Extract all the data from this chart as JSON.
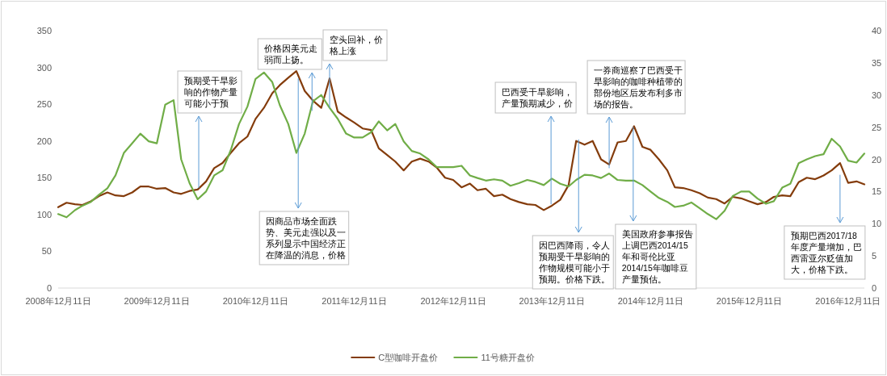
{
  "chart_data": {
    "type": "line",
    "x": [
      "2008-12-11",
      "2009-01-11",
      "2009-02-11",
      "2009-03-11",
      "2009-04-11",
      "2009-05-11",
      "2009-06-11",
      "2009-07-11",
      "2009-08-11",
      "2009-09-11",
      "2009-10-11",
      "2009-11-11",
      "2009-12-11",
      "2010-01-11",
      "2010-02-11",
      "2010-03-11",
      "2010-04-11",
      "2010-05-11",
      "2010-06-11",
      "2010-07-11",
      "2010-08-11",
      "2010-09-11",
      "2010-10-11",
      "2010-11-11",
      "2010-12-11",
      "2011-01-11",
      "2011-02-11",
      "2011-03-11",
      "2011-04-11",
      "2011-05-11",
      "2011-06-11",
      "2011-07-11",
      "2011-08-11",
      "2011-09-11",
      "2011-10-11",
      "2011-11-11",
      "2011-12-11",
      "2012-01-11",
      "2012-02-11",
      "2012-03-11",
      "2012-04-11",
      "2012-05-11",
      "2012-06-11",
      "2012-07-11",
      "2012-08-11",
      "2012-09-11",
      "2012-10-11",
      "2012-11-11",
      "2012-12-11",
      "2013-01-11",
      "2013-02-11",
      "2013-03-11",
      "2013-04-11",
      "2013-05-11",
      "2013-06-11",
      "2013-07-11",
      "2013-08-11",
      "2013-09-11",
      "2013-10-11",
      "2013-11-11",
      "2013-12-11",
      "2014-01-11",
      "2014-02-11",
      "2014-03-11",
      "2014-04-11",
      "2014-05-11",
      "2014-06-11",
      "2014-07-11",
      "2014-08-11",
      "2014-09-11",
      "2014-10-11",
      "2014-11-11",
      "2014-12-11",
      "2015-01-11",
      "2015-02-11",
      "2015-03-11",
      "2015-04-11",
      "2015-05-11",
      "2015-06-11",
      "2015-07-11",
      "2015-08-11",
      "2015-09-11",
      "2015-10-11",
      "2015-11-11",
      "2015-12-11",
      "2016-01-11",
      "2016-02-11",
      "2016-03-11",
      "2016-04-11",
      "2016-05-11",
      "2016-06-11",
      "2016-07-11",
      "2016-08-11",
      "2016-09-11",
      "2016-10-11",
      "2016-11-11",
      "2016-12-11",
      "2017-01-11",
      "2017-02-09"
    ],
    "series": [
      {
        "name": "C型咖啡开盘价",
        "color": "#843c0c",
        "values": [
          110,
          116,
          114,
          113,
          118,
          125,
          130,
          126,
          125,
          130,
          138,
          138,
          135,
          136,
          130,
          128,
          132,
          134,
          145,
          163,
          170,
          184,
          197,
          206,
          230,
          245,
          265,
          276,
          286,
          295,
          268,
          255,
          245,
          285,
          240,
          232,
          225,
          217,
          215,
          190,
          181,
          172,
          160,
          172,
          176,
          172,
          164,
          150,
          147,
          137,
          142,
          133,
          135,
          125,
          127,
          121,
          117,
          114,
          113,
          106,
          112,
          120,
          140,
          200,
          195,
          200,
          175,
          168,
          198,
          200,
          220,
          192,
          188,
          175,
          160,
          137,
          136,
          133,
          129,
          123,
          121,
          115,
          124,
          122,
          118,
          114,
          117,
          124,
          126,
          125,
          144,
          150,
          148,
          153,
          160,
          170,
          143,
          145,
          141
        ]
      },
      {
        "name": "11号糖开盘价",
        "color": "#70ad47",
        "axis": "y2",
        "values": [
          11.5,
          11.0,
          12.1,
          12.8,
          13.4,
          14.5,
          15.5,
          17.5,
          21.0,
          22.5,
          24.0,
          22.8,
          22.5,
          28.5,
          29.2,
          20.0,
          16.3,
          13.8,
          15.0,
          17.5,
          18.3,
          21.5,
          25.5,
          28.2,
          32.5,
          33.5,
          32.0,
          28.4,
          25.5,
          21.0,
          24.0,
          29.0,
          30.0,
          28.0,
          26.3,
          24.0,
          23.4,
          23.4,
          24.2,
          25.9,
          24.5,
          25.5,
          22.8,
          21.3,
          20.9,
          20.0,
          18.8,
          18.8,
          18.8,
          19.0,
          17.5,
          17.1,
          16.7,
          16.9,
          16.7,
          15.9,
          16.3,
          16.8,
          16.5,
          16.0,
          17.0,
          16.2,
          15.8,
          16.8,
          17.6,
          17.5,
          17.1,
          17.8,
          16.8,
          16.7,
          16.7,
          16.0,
          15.0,
          14.0,
          13.4,
          12.6,
          12.8,
          13.3,
          12.4,
          11.5,
          10.7,
          12.0,
          14.3,
          15.0,
          15.0,
          13.9,
          13.1,
          13.5,
          15.6,
          16.2,
          19.4,
          20.0,
          20.5,
          20.8,
          23.2,
          22.0,
          19.8,
          19.5,
          20.9
        ]
      }
    ],
    "xlim": [
      "2008-12-11",
      "2017-02-09"
    ],
    "xticks": [
      {
        "value": "2008-12-11",
        "label": "2008年12月11日"
      },
      {
        "value": "2009-12-11",
        "label": "2009年12月11日"
      },
      {
        "value": "2010-12-11",
        "label": "2010年12月11日"
      },
      {
        "value": "2011-12-11",
        "label": "2011年12月11日"
      },
      {
        "value": "2012-12-11",
        "label": "2012年12月11日"
      },
      {
        "value": "2013-12-11",
        "label": "2013年12月11日"
      },
      {
        "value": "2014-12-11",
        "label": "2014年12月11日"
      },
      {
        "value": "2015-12-11",
        "label": "2015年12月11日"
      },
      {
        "value": "2016-12-11",
        "label": "2016年12月11日"
      }
    ],
    "ylim": [
      0,
      350
    ],
    "yticks": [
      0,
      50,
      100,
      150,
      200,
      250,
      300,
      350
    ],
    "y2lim": [
      0,
      40
    ],
    "y2ticks": [
      0,
      5,
      10,
      15,
      20,
      25,
      30,
      35,
      40
    ],
    "legend": "bottom",
    "annotations": [
      {
        "text": "预期受干旱影响的作物产量可能小于预",
        "x": "2010-05-15",
        "y": 136
      },
      {
        "text": "价格因美元走弱而上扬。",
        "x": "2011-07-08",
        "y": 241
      },
      {
        "text": "空头回补，价格上涨",
        "x": "2011-09-11",
        "y": 245
      },
      {
        "text": "因商品市场全面跌势、美元走强以及一系列显示中国经济正在降温的消息，价格",
        "x": "2011-05-18",
        "y": 285
      },
      {
        "text": "巴西受干旱影响，产量预期减少，价",
        "x": "2013-12-08",
        "y": 114
      },
      {
        "text": "一券商巡察了巴西受干旱影响的咖啡种植带的部份地区后发布利多市场的报告。",
        "x": "2014-07-11",
        "y": 163
      },
      {
        "text": "因巴西降雨，令人预期受干旱影响的作物规模可能小于预期。价格下跌。",
        "x": "2014-03-20",
        "y": 202
      },
      {
        "text": "美国政府参事报告上调巴西2014/15年和哥伦比亚2014/15年咖啡豆产量预估。",
        "x": "2014-10-08",
        "y": 219
      },
      {
        "text": "预期巴西2017/18年度产量增加，巴西雷亚尔贬值加大，价格下跌。",
        "x": "2016-11-11",
        "y": 154
      }
    ]
  }
}
